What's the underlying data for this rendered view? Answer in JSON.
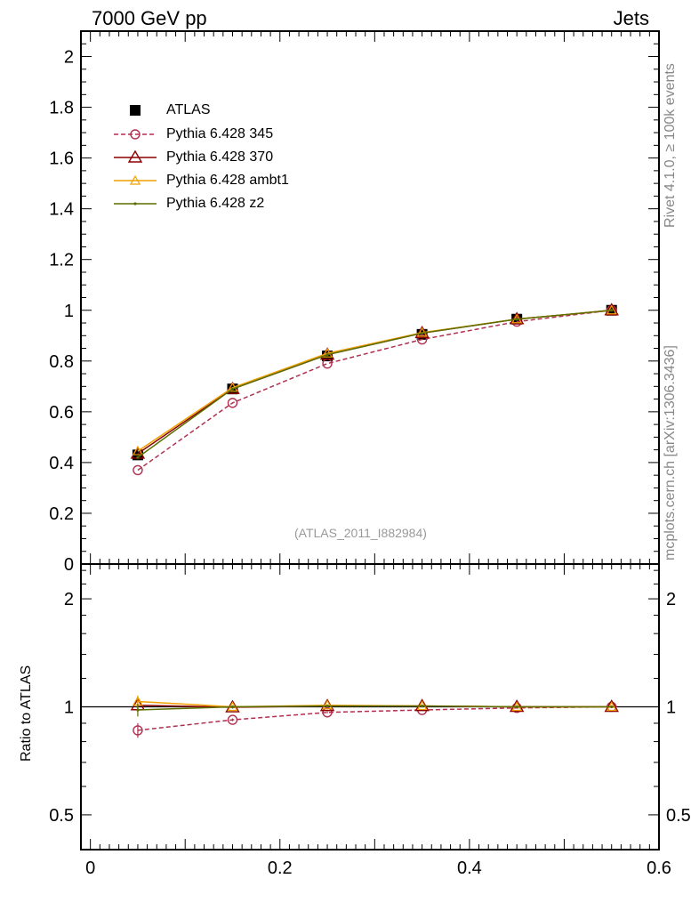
{
  "header": {
    "energy": "7000 GeV pp",
    "process": "Jets"
  },
  "side_text": {
    "rivet": "Rivet 4.1.0, ≥ 100k events",
    "source": "mcplots.cern.ch [arXiv:1306.3436]"
  },
  "watermark": "(ATLAS_2011_I882984)",
  "colors": {
    "atlas": "#000000",
    "p345": "#b03050",
    "p370": "#8b0000",
    "ambt1": "#f0a000",
    "z2": "#5a6e00"
  },
  "chart_data": [
    {
      "type": "line",
      "panel": "main",
      "ylim": [
        0,
        2.1
      ],
      "xlim": [
        -0.01,
        0.6
      ],
      "y_ticks": [
        0,
        0.2,
        0.4,
        0.6,
        0.8,
        1,
        1.2,
        1.4,
        1.6,
        1.8,
        2
      ],
      "y_tick_labels": [
        "0",
        "0.2",
        "0.4",
        "0.6",
        "0.8",
        "1",
        "1.2",
        "1.4",
        "1.6",
        "1.8",
        "2"
      ],
      "x": [
        0.05,
        0.15,
        0.25,
        0.35,
        0.45,
        0.55
      ],
      "legend_position": "top-left",
      "series": [
        {
          "name": "ATLAS",
          "color_key": "atlas",
          "marker": "square",
          "values": [
            0.43,
            0.69,
            0.82,
            0.905,
            0.965,
            1.0
          ]
        },
        {
          "name": "Pythia 6.428 345",
          "color_key": "p345",
          "marker": "circle",
          "dashed": true,
          "values": [
            0.37,
            0.635,
            0.79,
            0.885,
            0.955,
            1.0
          ]
        },
        {
          "name": "Pythia 6.428 370",
          "color_key": "p370",
          "marker": "triangle",
          "values": [
            0.435,
            0.69,
            0.825,
            0.91,
            0.965,
            1.0
          ]
        },
        {
          "name": "Pythia 6.428 ambt1",
          "color_key": "ambt1",
          "marker": "triangle-small",
          "values": [
            0.445,
            0.695,
            0.83,
            0.912,
            0.965,
            1.0
          ]
        },
        {
          "name": "Pythia 6.428 z2",
          "color_key": "z2",
          "marker": "dot",
          "values": [
            0.42,
            0.69,
            0.825,
            0.91,
            0.965,
            1.0
          ]
        }
      ]
    },
    {
      "type": "line",
      "panel": "ratio",
      "ylabel": "Ratio to ATLAS",
      "ylim": [
        0.4,
        2.5
      ],
      "y_scale": "log",
      "xlim": [
        -0.01,
        0.6
      ],
      "y_ticks": [
        0.5,
        1,
        2
      ],
      "y_tick_labels": [
        "0.5",
        "1",
        "2"
      ],
      "x_ticks": [
        0,
        0.2,
        0.4,
        0.6
      ],
      "x_tick_labels": [
        "0",
        "0.2",
        "0.4",
        "0.6"
      ],
      "x": [
        0.05,
        0.15,
        0.25,
        0.35,
        0.45,
        0.55
      ],
      "series": [
        {
          "name": "Pythia 6.428 345",
          "color_key": "p345",
          "marker": "circle",
          "dashed": true,
          "values": [
            0.86,
            0.92,
            0.965,
            0.98,
            0.993,
            1.0
          ],
          "errors": [
            0.04,
            0.008,
            0.006,
            0.004,
            0.003,
            0.002
          ]
        },
        {
          "name": "Pythia 6.428 370",
          "color_key": "p370",
          "marker": "triangle",
          "values": [
            1.01,
            0.997,
            1.005,
            1.005,
            1.0,
            1.0
          ],
          "errors": [
            0.04,
            0.008,
            0.006,
            0.004,
            0.003,
            0.002
          ]
        },
        {
          "name": "Pythia 6.428 ambt1",
          "color_key": "ambt1",
          "marker": "triangle-small",
          "values": [
            1.035,
            1.0,
            1.01,
            1.006,
            1.0,
            1.0
          ],
          "errors": [
            0.04,
            0.008,
            0.006,
            0.004,
            0.003,
            0.002
          ]
        },
        {
          "name": "Pythia 6.428 z2",
          "color_key": "z2",
          "marker": "dot",
          "values": [
            0.98,
            1.0,
            1.005,
            1.005,
            1.0,
            1.0
          ],
          "errors": [
            0.04,
            0.008,
            0.006,
            0.004,
            0.003,
            0.002
          ]
        }
      ]
    }
  ]
}
